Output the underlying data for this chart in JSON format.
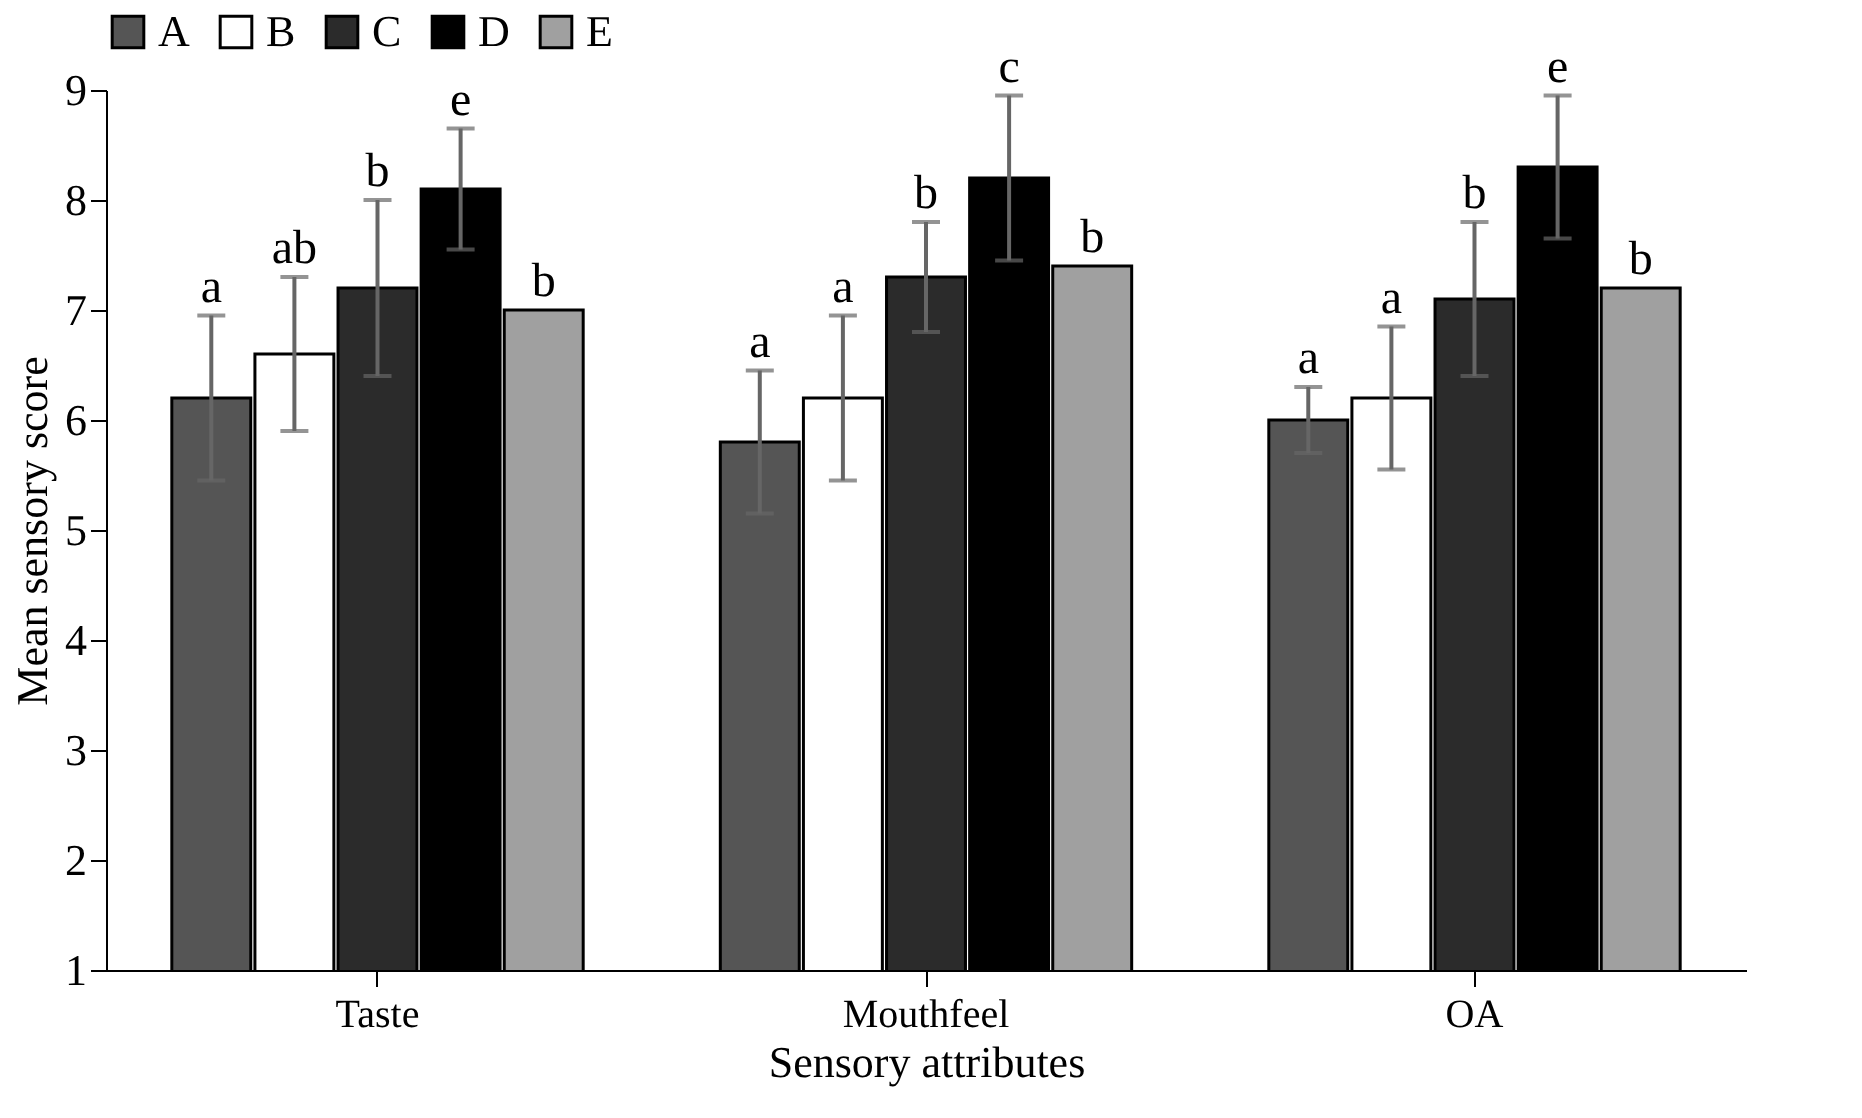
{
  "chart_data": {
    "type": "bar",
    "xlabel": "Sensory attributes",
    "ylabel": "Mean sensory score",
    "categories": [
      "Taste",
      "Mouthfeel",
      "OA"
    ],
    "ylim": [
      1,
      9
    ],
    "yticks": [
      1,
      2,
      3,
      4,
      5,
      6,
      7,
      8,
      9
    ],
    "grid": false,
    "legend": "top",
    "series": [
      {
        "name": "A",
        "color": "#555555",
        "values": [
          6.2,
          5.8,
          6.0
        ],
        "errors": [
          0.75,
          0.65,
          0.3
        ],
        "value_labels": [
          "a",
          "a",
          "a"
        ]
      },
      {
        "name": "B",
        "color": "#ffffff",
        "values": [
          6.6,
          6.2,
          6.2
        ],
        "errors": [
          0.7,
          0.75,
          0.65
        ],
        "value_labels": [
          "ab",
          "a",
          "a"
        ]
      },
      {
        "name": "C",
        "color": "#2b2b2b",
        "values": [
          7.2,
          7.3,
          7.1
        ],
        "errors": [
          0.8,
          0.5,
          0.7
        ],
        "value_labels": [
          "b",
          "b",
          "b"
        ]
      },
      {
        "name": "D",
        "color": "#000000",
        "values": [
          8.1,
          8.2,
          8.3
        ],
        "errors": [
          0.55,
          0.75,
          0.65
        ],
        "value_labels": [
          "e",
          "c",
          "e"
        ]
      },
      {
        "name": "E",
        "color": "#a0a0a0",
        "values": [
          7.0,
          7.4,
          7.2
        ],
        "errors": [
          null,
          null,
          null
        ],
        "value_labels": [
          "b",
          "b",
          "b"
        ]
      }
    ]
  }
}
